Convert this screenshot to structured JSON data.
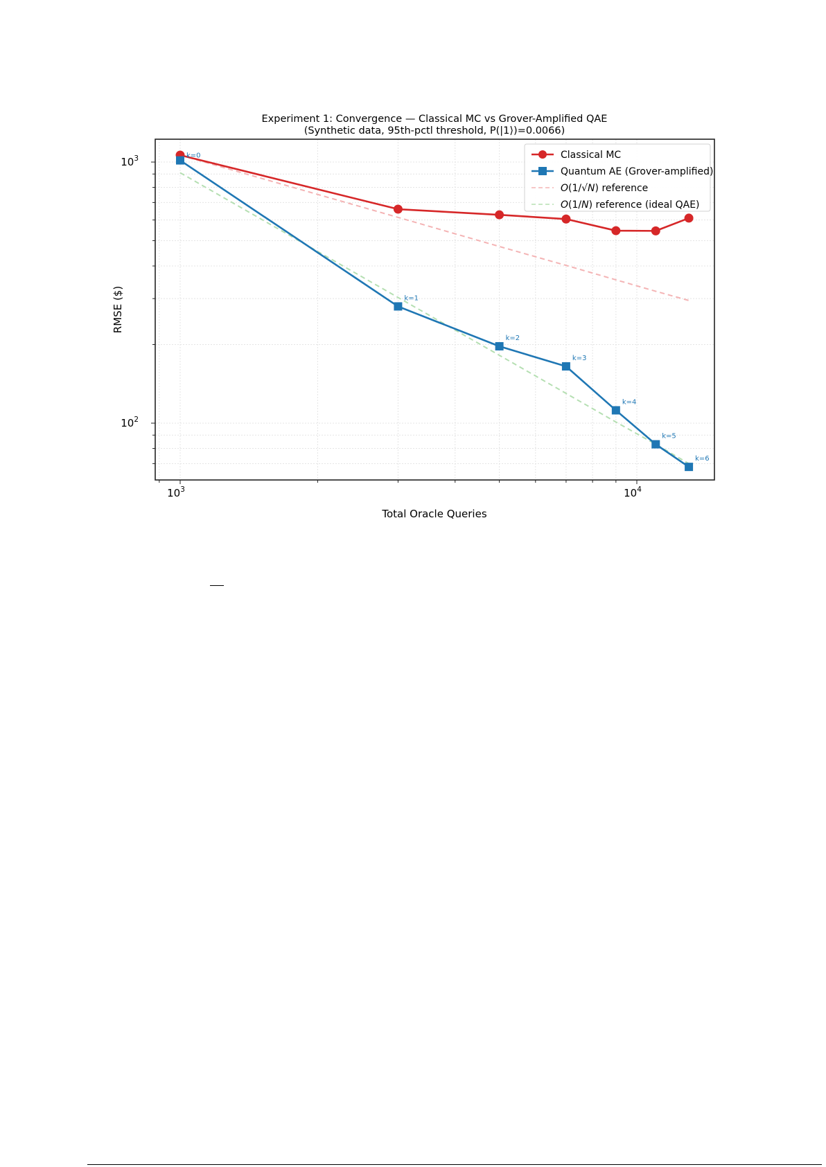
{
  "chart_data": {
    "type": "line",
    "title": "Experiment 1: Convergence — Classical MC vs Grover-Amplified QAE",
    "subtitle": "(Synthetic data, 95th-pctl threshold, P(|1⟩)=0.0066)",
    "xlabel": "Total Oracle Queries",
    "ylabel": "RMSE ($)",
    "xscale": "log",
    "yscale": "log",
    "xlim": [
      830,
      16500
    ],
    "ylim": [
      63,
      1280
    ],
    "x_ticks": [
      {
        "value": 1000,
        "label": "10",
        "exp": "3"
      },
      {
        "value": 10000,
        "label": "10",
        "exp": "4"
      }
    ],
    "y_ticks": [
      {
        "value": 100,
        "label": "10",
        "exp": "2"
      },
      {
        "value": 1000,
        "label": "10",
        "exp": "3"
      }
    ],
    "grid": true,
    "legend_position": "upper right",
    "x": [
      1000,
      3000,
      5000,
      7000,
      9000,
      11000,
      13000
    ],
    "series": [
      {
        "name": "Classical MC",
        "color": "#d62728",
        "marker": "circle",
        "style": "solid",
        "values": [
          1063,
          660,
          628,
          605,
          546,
          545,
          610
        ]
      },
      {
        "name": "Quantum AE (Grover-amplified)",
        "color": "#1f77b4",
        "marker": "square",
        "style": "solid",
        "values": [
          1015,
          280,
          197,
          165,
          112,
          83,
          68
        ],
        "point_labels": [
          "k=0",
          "k=1",
          "k=2",
          "k=3",
          "k=4",
          "k=5",
          "k=6"
        ]
      },
      {
        "name": "O(1/√N) reference",
        "legend_math": {
          "pre": "O",
          "mid": "(1/√",
          "var": "N",
          "post": ") reference"
        },
        "color": "#f4b3b4",
        "marker": "none",
        "style": "dashed",
        "values": [
          1063,
          614,
          475,
          402,
          354,
          320,
          295
        ]
      },
      {
        "name": "O(1/N) reference (ideal QAE)",
        "legend_math": {
          "pre": "O",
          "mid": "(1/",
          "var": "N",
          "post": ") reference (ideal QAE)"
        },
        "color": "#b5dfb2",
        "marker": "none",
        "style": "dashed",
        "values": [
          910,
          303,
          182,
          130,
          101,
          83,
          70
        ]
      }
    ]
  }
}
